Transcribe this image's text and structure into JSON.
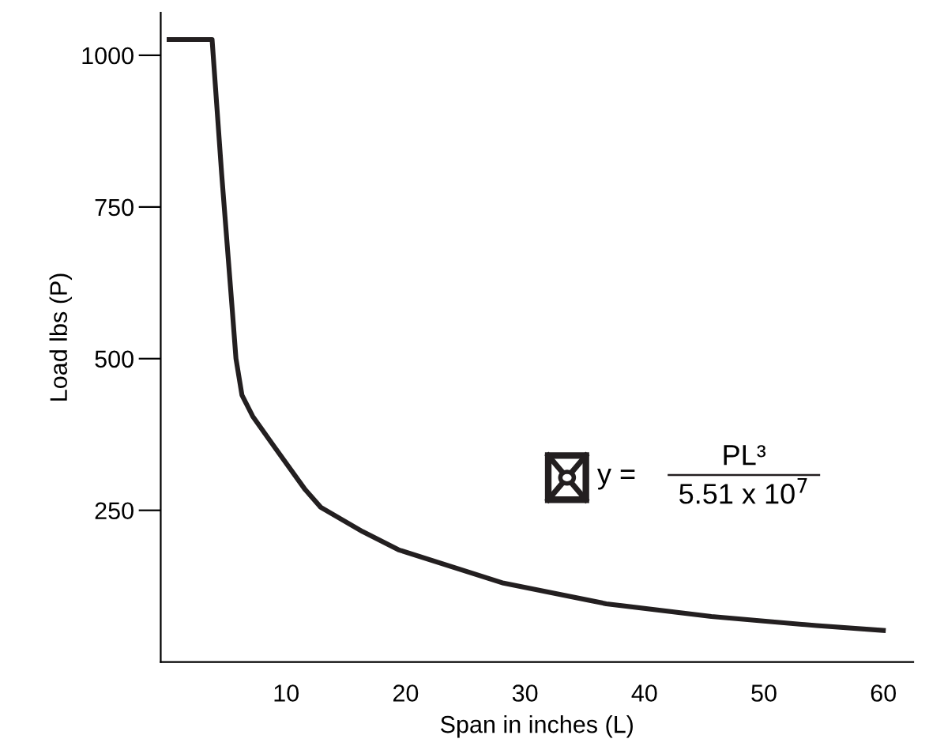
{
  "chart_data": {
    "type": "line",
    "xlabel": "Span in inches (L)",
    "ylabel": "Load lbs (P)",
    "x": [
      0.2,
      3.8,
      4.6,
      5.5,
      5.8,
      6.3,
      7.2,
      9,
      11.6,
      12.9,
      16.4,
      19.4,
      28.2,
      36.8,
      45.6,
      54.4,
      60
    ],
    "series": [
      {
        "color": "#231f20",
        "values": [
          1026,
          1026,
          805,
          578,
          500,
          440,
          405,
          355,
          284,
          255,
          215,
          185,
          130,
          96,
          75,
          60,
          52
        ]
      }
    ],
    "xlim": [
      -0.5,
      62.5
    ],
    "ylim": [
      0,
      1070
    ],
    "xticks": [
      10,
      20,
      30,
      40,
      50,
      60
    ],
    "yticks": [
      250,
      500,
      750,
      1000
    ],
    "grid": false,
    "legend": false,
    "marker": "none",
    "line_style": "solid",
    "annotations": [
      "y =",
      "PL³",
      "5.51 x 10$^{7}$"
    ]
  }
}
